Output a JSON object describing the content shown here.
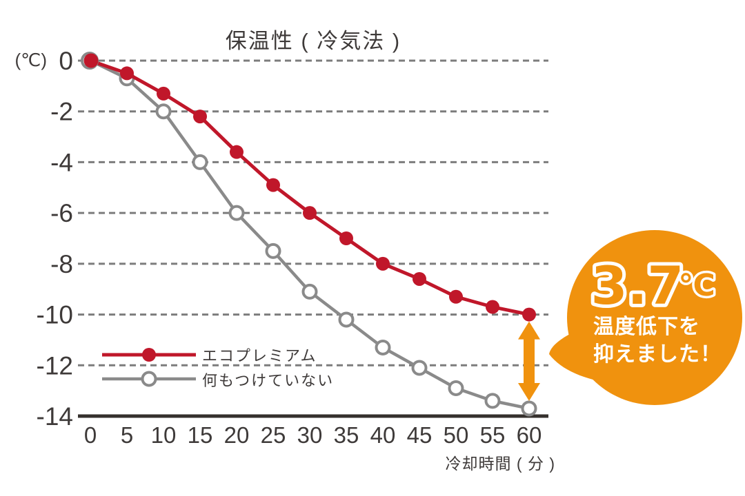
{
  "chart_data": {
    "type": "line",
    "title": "保温性 ( 冷気法 )",
    "xlabel": "冷却時間 ( 分 )",
    "ylabel": "(℃)",
    "x": [
      0,
      5,
      10,
      15,
      20,
      25,
      30,
      35,
      40,
      45,
      50,
      55,
      60
    ],
    "ylim": [
      -14,
      0
    ],
    "yticks": [
      0,
      -2,
      -4,
      -6,
      -8,
      -10,
      -12,
      -14
    ],
    "grid": "horizontal-dashed",
    "legend_position": "inside-bottom-left",
    "series": [
      {
        "name": "エコプレミアム",
        "color": "#C0172A",
        "marker": "filled",
        "values": [
          0,
          -0.5,
          -1.3,
          -2.2,
          -3.6,
          -4.9,
          -6.0,
          -7.0,
          -8.0,
          -8.6,
          -9.3,
          -9.7,
          -10.0
        ]
      },
      {
        "name": "何もつけていない",
        "color": "#8A8A8A",
        "marker": "open",
        "values": [
          0,
          -0.7,
          -2.0,
          -4.0,
          -6.0,
          -7.5,
          -9.1,
          -10.2,
          -11.3,
          -12.1,
          -12.9,
          -13.4,
          -13.7
        ]
      }
    ],
    "annotation": {
      "delta": "3.7",
      "unit": "℃",
      "text": "温度低下を抑えました！",
      "at_x": 60
    }
  },
  "badge": {
    "value": "3.7",
    "unit": "℃",
    "line1": "温度低下を",
    "line2": "抑えました！"
  },
  "colors": {
    "accent_orange": "#F0920E",
    "series_red": "#C0172A",
    "series_gray": "#8A8A8A",
    "grid": "#7C7C7C",
    "axis": "#35302D",
    "text": "#3E3A39"
  }
}
